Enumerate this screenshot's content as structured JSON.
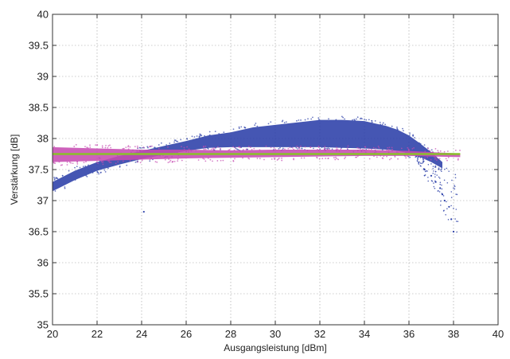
{
  "chart_data": {
    "type": "scatter",
    "title": "",
    "xlabel": "Ausgangsleistung [dBm]",
    "ylabel": "Verstärkung [dB]",
    "xlim": [
      20,
      40
    ],
    "ylim": [
      35,
      40
    ],
    "xticks": [
      "20",
      "22",
      "24",
      "26",
      "28",
      "30",
      "32",
      "34",
      "36",
      "38",
      "40"
    ],
    "yticks": [
      "35",
      "35.5",
      "36",
      "36.5",
      "37",
      "37.5",
      "38",
      "38.5",
      "39",
      "39.5",
      "40"
    ],
    "grid": true,
    "legend": "none",
    "series": [
      {
        "color": "#2b3fa8",
        "marker": "point",
        "band_x": [
          20,
          21,
          22,
          23,
          24,
          25,
          26,
          27,
          28,
          29,
          30,
          31,
          32,
          33,
          34,
          35,
          35.5,
          36,
          36.5,
          37,
          37.5
        ],
        "band_upper": [
          37.3,
          37.48,
          37.62,
          37.72,
          37.8,
          37.88,
          37.96,
          38.05,
          38.1,
          38.18,
          38.22,
          38.26,
          38.3,
          38.3,
          38.28,
          38.2,
          38.14,
          38.05,
          37.92,
          37.78,
          37.62
        ],
        "band_lower": [
          37.15,
          37.33,
          37.48,
          37.58,
          37.67,
          37.74,
          37.8,
          37.85,
          37.86,
          37.86,
          37.86,
          37.86,
          37.86,
          37.85,
          37.84,
          37.82,
          37.8,
          37.76,
          37.7,
          37.62,
          37.52
        ],
        "scatter_outliers": [
          [
            36.7,
            37.5
          ],
          [
            37.0,
            37.4
          ],
          [
            37.2,
            37.3
          ],
          [
            37.4,
            37.2
          ],
          [
            37.5,
            37.1
          ],
          [
            37.6,
            37.0
          ],
          [
            37.8,
            36.9
          ],
          [
            37.9,
            36.7
          ],
          [
            38.0,
            36.5
          ],
          [
            24.1,
            36.82
          ]
        ]
      },
      {
        "color": "#c64bb2",
        "marker": "point",
        "band_x": [
          20,
          22,
          24,
          26,
          28,
          30,
          32,
          34,
          36,
          37,
          38.3
        ],
        "band_upper": [
          37.86,
          37.84,
          37.82,
          37.82,
          37.81,
          37.82,
          37.82,
          37.82,
          37.8,
          37.78,
          37.76
        ],
        "band_lower": [
          37.62,
          37.64,
          37.66,
          37.68,
          37.69,
          37.7,
          37.71,
          37.72,
          37.72,
          37.71,
          37.7
        ]
      },
      {
        "color": "#8ac02a",
        "marker": "line",
        "x": [
          20,
          38.3
        ],
        "y": [
          37.75,
          37.75
        ]
      }
    ]
  }
}
